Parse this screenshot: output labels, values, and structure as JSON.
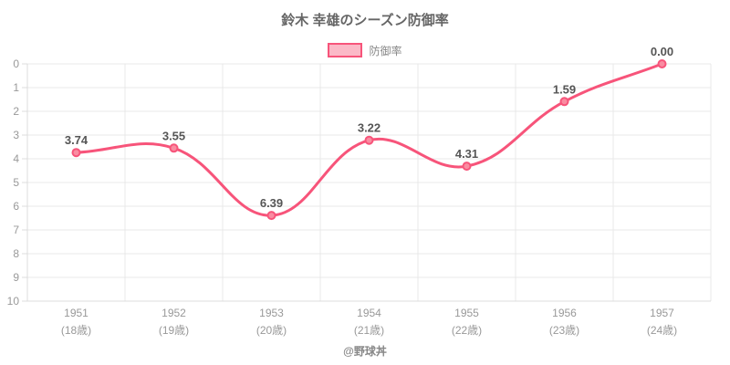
{
  "title": "鈴木 幸雄のシーズン防御率",
  "legend": {
    "label": "防御率"
  },
  "footer": "@野球丼",
  "colors": {
    "line": "#f7547a",
    "point_fill": "#f98ca1",
    "legend_fill": "#fbb9c7",
    "grid": "#e9e9e9",
    "axis": "#dcdcdc",
    "tick_label": "#999999",
    "data_label": "#555555",
    "title": "#666666",
    "legend_text": "#888888",
    "footer": "#888888",
    "background": "#ffffff"
  },
  "chart_data": {
    "type": "line",
    "title": "鈴木 幸雄のシーズン防御率",
    "series_name": "防御率",
    "categories": [
      {
        "year": "1951",
        "age": "(18歳)"
      },
      {
        "year": "1952",
        "age": "(19歳)"
      },
      {
        "year": "1953",
        "age": "(20歳)"
      },
      {
        "year": "1954",
        "age": "(21歳)"
      },
      {
        "year": "1955",
        "age": "(22歳)"
      },
      {
        "year": "1956",
        "age": "(23歳)"
      },
      {
        "year": "1957",
        "age": "(24歳)"
      }
    ],
    "values": [
      3.74,
      3.55,
      6.39,
      3.22,
      4.31,
      1.59,
      0.0
    ],
    "value_labels": [
      "3.74",
      "3.55",
      "6.39",
      "3.22",
      "4.31",
      "1.59",
      "0.00"
    ],
    "y_axis": {
      "min": 0,
      "max": 10,
      "step": 1,
      "reversed": true
    },
    "grid": true,
    "smooth": true,
    "legend_position": "top",
    "watermark": "@野球丼"
  }
}
